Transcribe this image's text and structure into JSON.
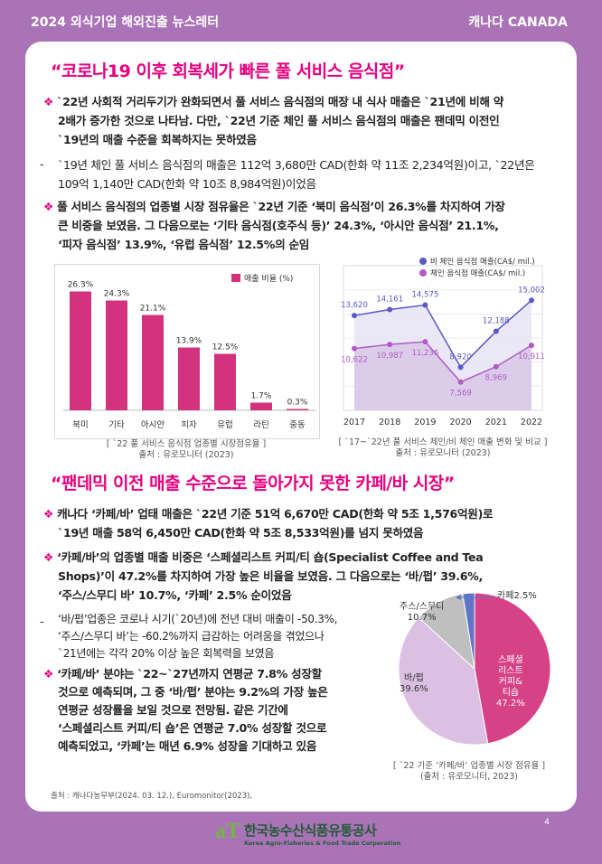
{
  "header": {
    "left": "2024 외식기업 해외진출 뉴스레터",
    "right": "캐나다 CANADA"
  },
  "section1": {
    "title": "“코로나19 이후 회복세가 빠른 풀 서비스 음식점”",
    "bullet1": [
      "`22년 사회적 거리두기가 완화되면서 풀 서비스 음식점의 매장 내 식사 매출은 `21년에 비해 약",
      "2배가 증가한 것으로 나타남. 다만, `22년 기준 체인 풀 서비스 음식점의 매출은 팬데믹 이전인",
      "`19년의 매출 수준을 회복하지는 못하였음"
    ],
    "dash1": [
      "`19년 체인 풀 서비스 음식점의 매출은 112억 3,680만 CAD(한화 약 11조 2,234억원)이고, `22년은",
      "109억 1,140만 CAD(한화 약 10조 8,984억원)이었음"
    ],
    "bullet2": [
      "풀 서비스 음식점의 업종별 시장 점유율은 `22년 기준 ‘북미 음식점’이 26.3%를 차지하여 가장",
      "큰 비중을 보였음. 그 다음으로는 ‘기타 음식점(호주식 등)’ 24.3%, ‘아시안 음식점’ 21.1%,",
      "‘피자 음식점’ 13.9%, ‘유럽 음식점’ 12.5%의 순임"
    ]
  },
  "bar_caption": [
    "[ `22 풀 서비스 음식점 업종별 시장점유율 ]",
    "출처 : 유로모니터 (2023)"
  ],
  "line_caption": [
    "[ `17~`22년 풀 서비스 체인/비 체인 매출 변화 및 비교 ]",
    "출처 : 유로모니터 (2023)"
  ],
  "section2": {
    "title": "“팬데믹 이전 매출 수준으로 돌아가지 못한 카페/바 시장”",
    "bullet1": [
      "캐나다 ‘카페/바’ 업태 매출은 `22년 기준 51억 6,670만 CAD(한화 약 5조 1,576억원)로",
      "`19년 매출 58억 6,450만 CAD(한화 약 5조 8,533억원)를 넘지 못하였음"
    ],
    "bullet2": [
      "‘카페/바’의 업종별 매출 비중은 ‘스페셜리스트 커피/티 숍(Specialist Coffee and Tea",
      "Shops)’이 47.2%를 차지하여 가장 높은 비율을 보였음. 그 다음으로는 ‘바/펍’ 39.6%,",
      "‘주스/스무디 바’ 10.7%, ‘카페’ 2.5% 순이었음"
    ],
    "dash1": [
      "‘바/펍’업종은 코로나 시기(`20년)에 전년 대비 매출이 -50.3%,",
      "‘주스/스무디 바’는 -60.2%까지 급감하는 어려움을 겪었으나",
      "`21년에는 각각 20% 이상 높은 회복력을 보였음"
    ],
    "bullet3": [
      "‘카페/바’ 분야는 `22~`27년까지 연평균 7.8% 성장할",
      "것으로 예측되며, 그 중 ‘바/펍’ 분야는 9.2%의 가장 높은",
      "연평균 성장률을 보일 것으로 전망됨. 같은 기간에",
      "‘스페셜리스트 커피/티 숍’은 연평균 7.0% 성장할 것으로",
      "예측되었고, ‘카페’는 매년 6.9% 성장을 기대하고 있음"
    ]
  },
  "pie_caption": [
    "[ `22 기준 ‘카페/바’ 업종별 시장 점유율 ]",
    "(출처 : 유로모니터, 2023)"
  ],
  "footer_source": "출처 : 캐나다농무부(2024. 03. 12.), Euromonitor(2023),",
  "page_number": "4",
  "logo": {
    "name_ko": "한국농수산식품유통공사",
    "name_en": "Korea Agro-Fisheries & Food Trade Corporation",
    "mark": "aT"
  },
  "colors": {
    "pink": "#e5007e",
    "bar": "#d3337e",
    "purple_bg": "#ab73b7",
    "line_chain": "#b15bc4",
    "line_nonchain": "#5a57c8",
    "pie_coffee": "#d74286",
    "pie_bar": "#dbc0e4",
    "pie_juice": "#bfbfbf",
    "pie_cafe": "#5f75c6"
  },
  "chart_data": [
    {
      "type": "bar",
      "categories": [
        "북미",
        "기타",
        "아시안",
        "피자",
        "유럽",
        "라틴",
        "중동"
      ],
      "values": [
        26.3,
        24.3,
        21.1,
        13.9,
        12.5,
        1.7,
        0.3
      ],
      "value_labels": [
        "26.3%",
        "24.3%",
        "21.1%",
        "13.9%",
        "12.5%",
        "1.7%",
        "0.3%"
      ],
      "series": [
        {
          "name": "매출 비율 (%)"
        }
      ],
      "ylim": [
        0,
        30
      ],
      "legend": "top-right",
      "grid": true
    },
    {
      "type": "line",
      "x": [
        "2017",
        "2018",
        "2019",
        "2020",
        "2021",
        "2022"
      ],
      "series": [
        {
          "name": "비 체인 음식점 매출(CA$/ mil.)",
          "values": [
            13620,
            14161,
            14575,
            8920,
            12188,
            15002
          ],
          "labels": [
            "13,620",
            "14,161",
            "14,575",
            "8,920",
            "12,188",
            "15,002"
          ]
        },
        {
          "name": "체인 음식점 매출(CA$/ mil.)",
          "values": [
            10622,
            10987,
            11236,
            7569,
            8969,
            10911
          ],
          "labels": [
            "10,622",
            "10,987",
            "11,236",
            "7,569",
            "8,969",
            "10,911"
          ]
        }
      ],
      "ylim": [
        5000,
        17000
      ],
      "legend": "top-right",
      "grid": true
    },
    {
      "type": "pie",
      "categories": [
        "스페셜리스트 커피& 티숍",
        "바/펍",
        "주스/스무디",
        "카페"
      ],
      "values": [
        47.2,
        39.6,
        10.7,
        2.5
      ],
      "labels": [
        [
          "스페셜",
          "리스트",
          "커피&",
          "티숍",
          "47.2%"
        ],
        [
          "바/펍",
          "39.6%"
        ],
        [
          "주스/스무디",
          "10.7%"
        ],
        [
          "카페2.5%"
        ]
      ]
    }
  ]
}
